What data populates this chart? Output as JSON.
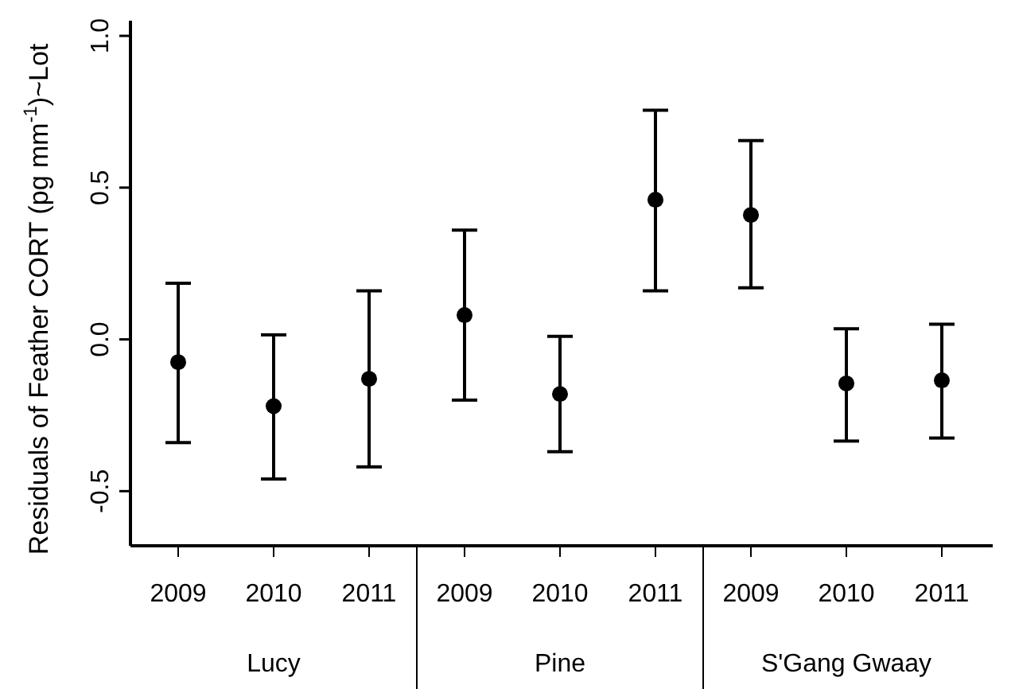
{
  "chart_data": {
    "type": "scatter",
    "ylabel": "Residuals of Feather CORT (pg mm$^{-1}$)~Lot",
    "categories": [
      "2009",
      "2010",
      "2011",
      "2009",
      "2010",
      "2011",
      "2009",
      "2010",
      "2011"
    ],
    "values": [
      -0.075,
      -0.22,
      -0.13,
      0.08,
      -0.18,
      0.46,
      0.41,
      -0.145,
      -0.135
    ],
    "errors": [
      [
        -0.34,
        0.185
      ],
      [
        -0.46,
        0.015
      ],
      [
        -0.42,
        0.16
      ],
      [
        -0.2,
        0.36
      ],
      [
        -0.37,
        0.01
      ],
      [
        0.16,
        0.755
      ],
      [
        0.17,
        0.655
      ],
      [
        -0.335,
        0.035
      ],
      [
        -0.325,
        0.05
      ]
    ],
    "color": "#000000",
    "marker": "circle",
    "ylim": [
      -0.68,
      1.05
    ],
    "yticks": [
      {
        "value": -0.5,
        "label": "-0.5"
      },
      {
        "value": 0,
        "label": "0.0"
      },
      {
        "value": 0.5,
        "label": "0.5"
      },
      {
        "value": 1,
        "label": "1.0"
      }
    ],
    "annotations": [
      "Lucy",
      "Pine",
      "S'Gang Gwaay"
    ]
  }
}
